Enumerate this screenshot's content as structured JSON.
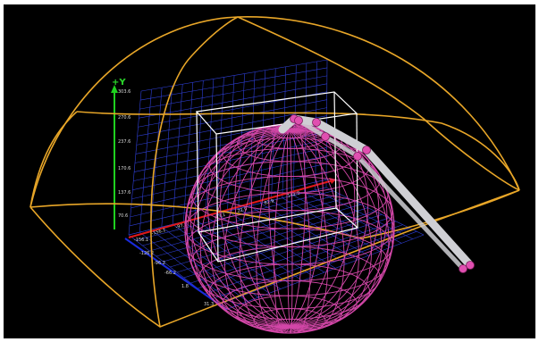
{
  "view": {
    "axis_label_y": "+Y",
    "y_ticks": [
      "303.6",
      "270.6",
      "237.6",
      "170.6",
      "137.6",
      "70.6"
    ],
    "x_ticks": [
      "-156.1",
      "-97.1",
      "-37.1",
      "22.9",
      "82.9",
      "142.9"
    ],
    "z_ticks": [
      "-156.1",
      "-126.2",
      "-96.2",
      "-66.2",
      "1.8",
      "31.3"
    ]
  },
  "colors": {
    "background": "#000000",
    "grid": "#2e3fd6",
    "x_axis": "#e01919",
    "y_axis": "#1fd11f",
    "z_axis": "#1a2bdb",
    "sphere": "#d347a8",
    "workspace": "#e8a628",
    "bounding_box": "#ffffff",
    "arm": "#cfcfd4",
    "joint": "#e04fb0"
  }
}
